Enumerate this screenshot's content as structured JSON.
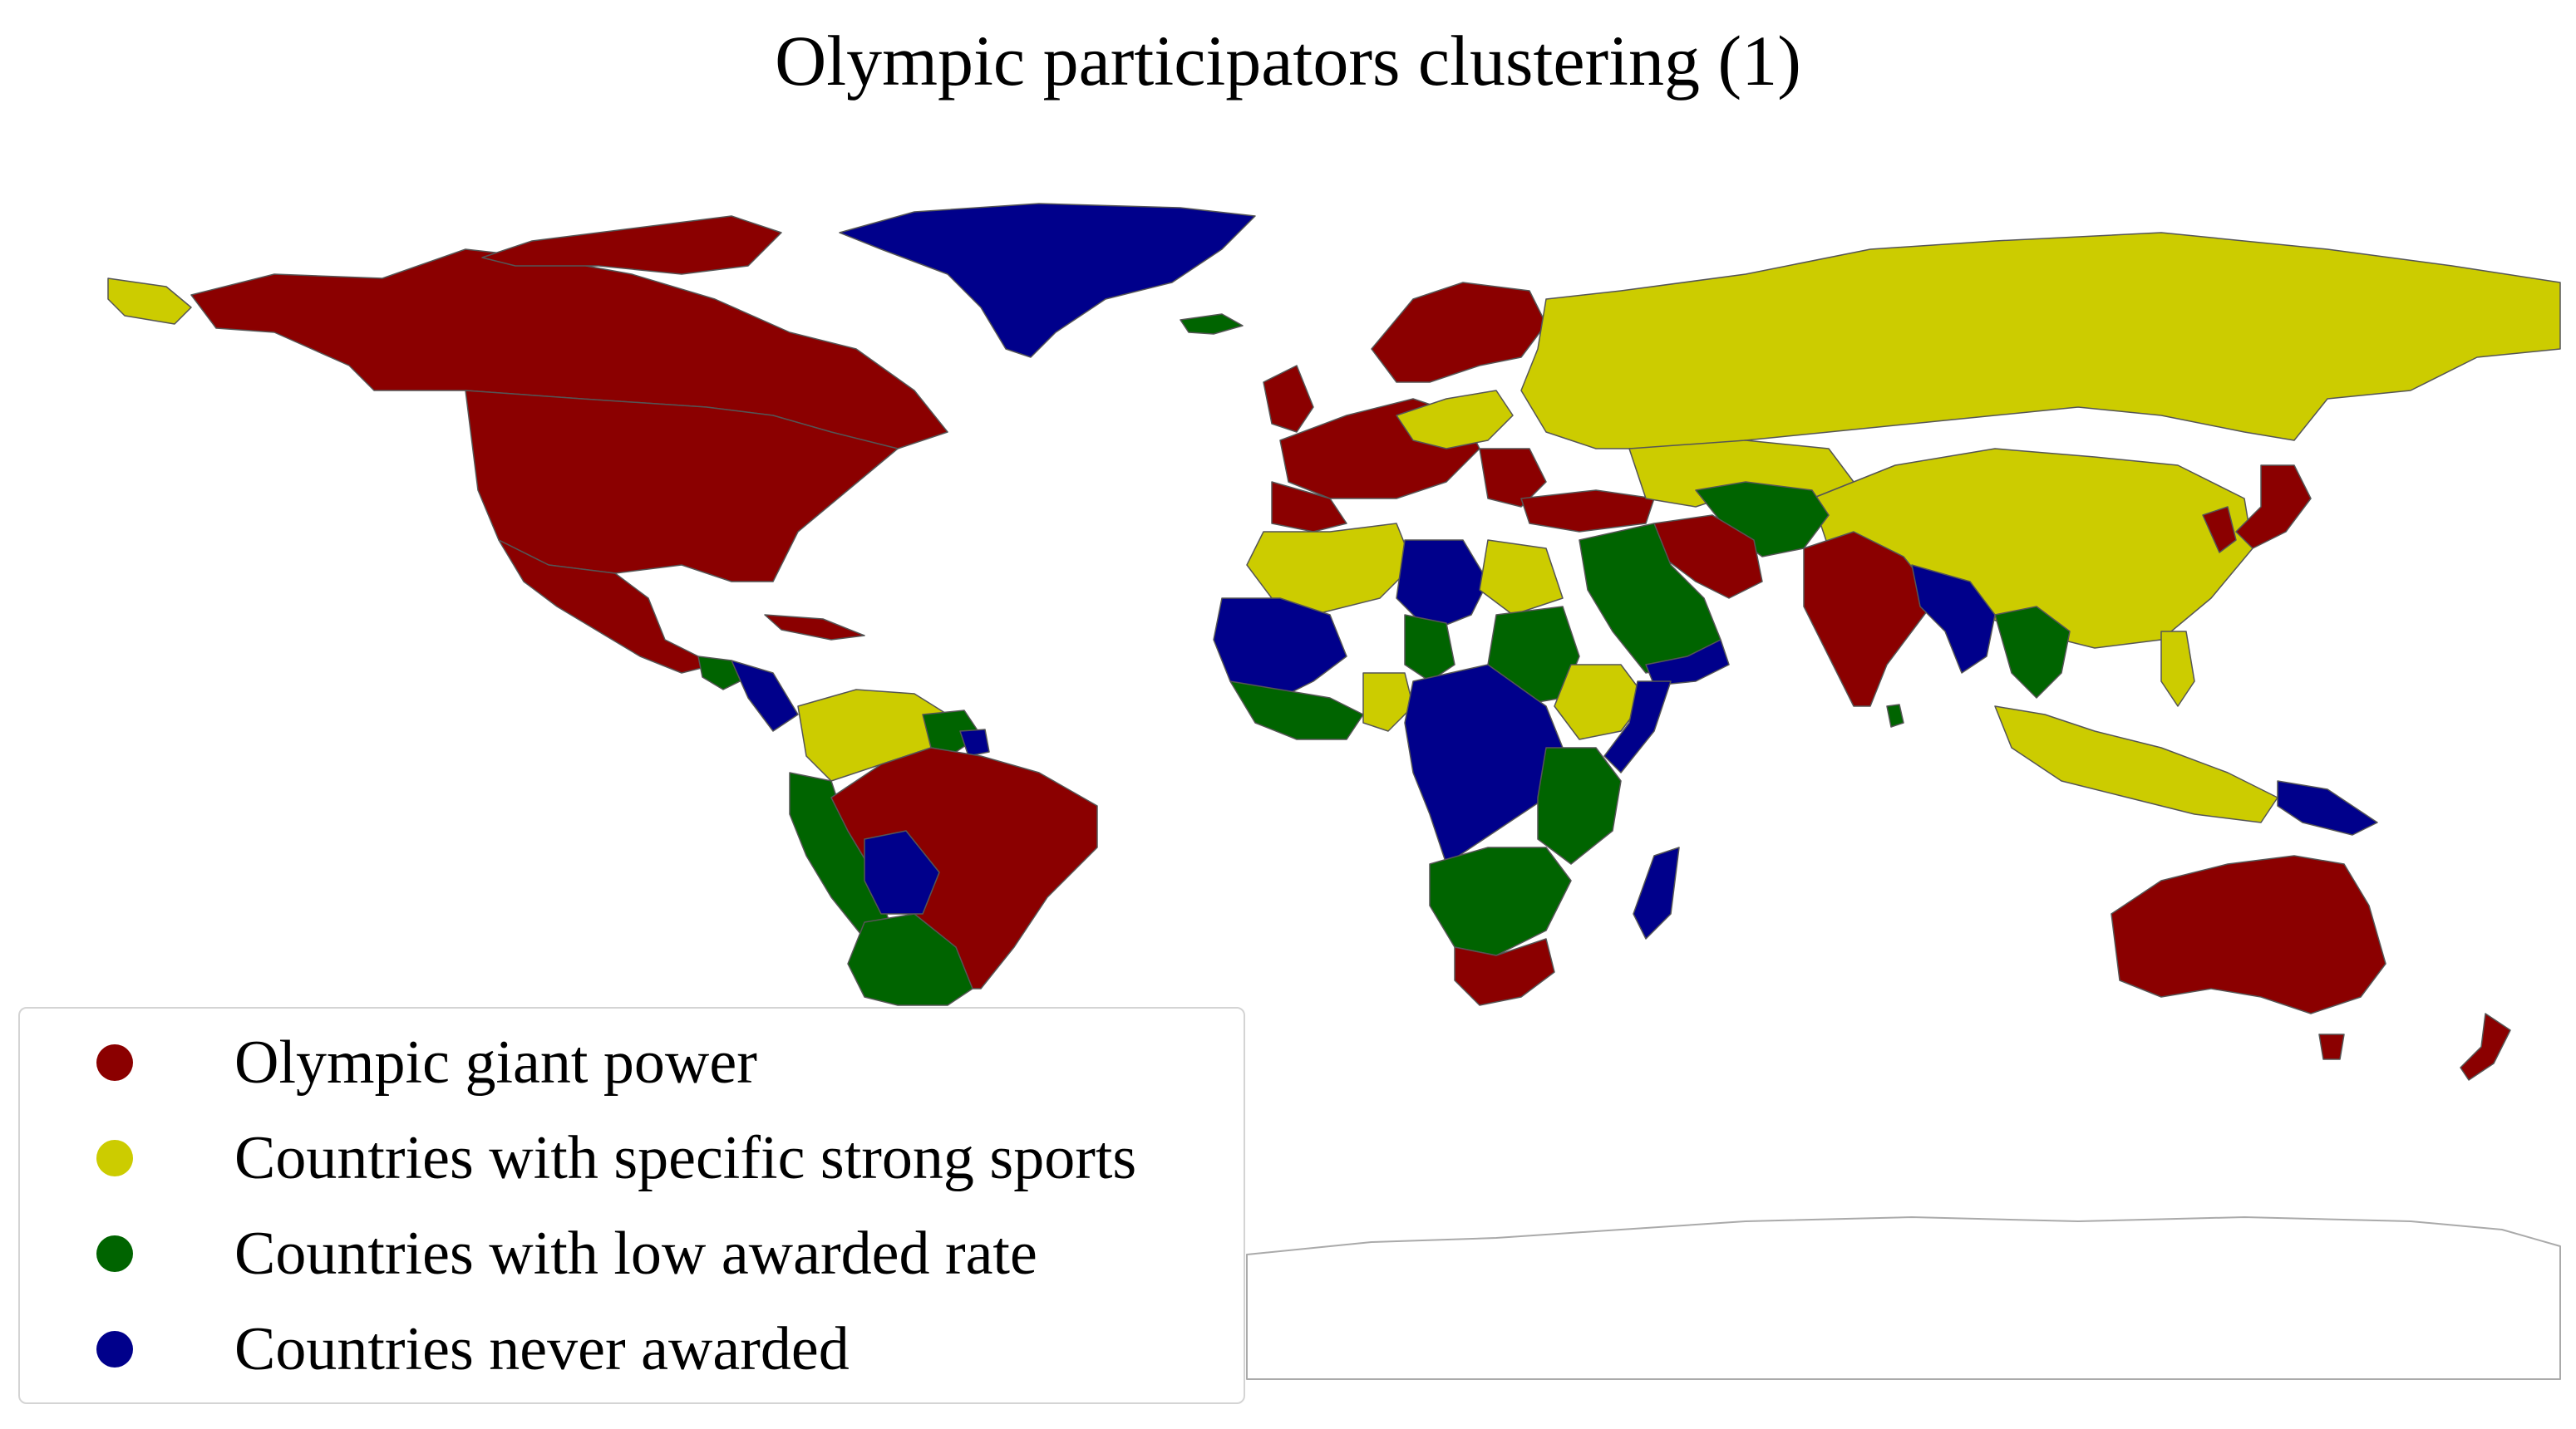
{
  "title": "Olympic participators clustering (1)",
  "colors": {
    "giant": "#8b0000",
    "strong": "#cccc00",
    "low": "#006400",
    "never": "#00008b"
  },
  "legend": [
    {
      "label": "Olympic giant power",
      "color": "#8b0000"
    },
    {
      "label": "Countries with specific strong sports",
      "color": "#cccc00"
    },
    {
      "label": "Countries with low awarded rate",
      "color": "#006400"
    },
    {
      "label": "Countries never awarded",
      "color": "#00008b"
    }
  ],
  "legend_placement": "lower-left"
}
